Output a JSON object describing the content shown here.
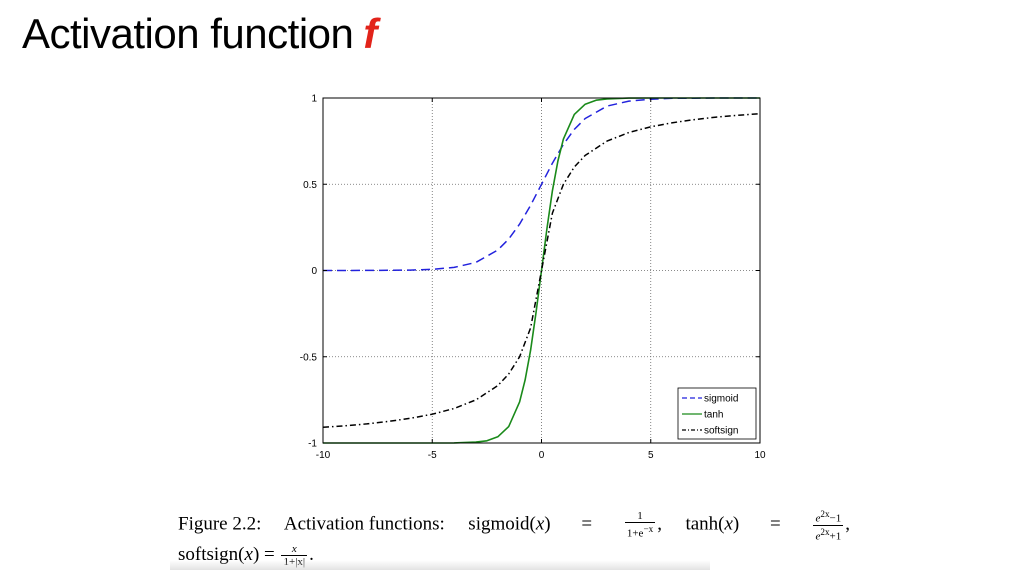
{
  "slide": {
    "title": "Activation function",
    "title_accent": "f",
    "accent_color": "#e2231a"
  },
  "chart_data": {
    "type": "line",
    "title": "",
    "xlabel": "",
    "ylabel": "",
    "xlim": [
      -10,
      10
    ],
    "ylim": [
      -1,
      1
    ],
    "grid": true,
    "legend_position": "bottom-right",
    "x_ticks": [
      "-10",
      "-5",
      "0",
      "5",
      "10"
    ],
    "x_tick_values": [
      -10,
      -5,
      0,
      5,
      10
    ],
    "y_ticks": [
      "-1",
      "-0.5",
      "0",
      "0.5",
      "1"
    ],
    "y_tick_values": [
      -1,
      -0.5,
      0,
      0.5,
      1
    ],
    "series": [
      {
        "name": "sigmoid",
        "style": "dashed",
        "color": "#2222dd",
        "x": [
          -10,
          -9,
          -8,
          -7,
          -6,
          -5,
          -4,
          -3,
          -2,
          -1.5,
          -1,
          -0.5,
          0,
          0.5,
          1,
          1.5,
          2,
          3,
          4,
          5,
          6,
          7,
          8,
          9,
          10
        ],
        "y": [
          0.0,
          0.0001,
          0.0003,
          0.0009,
          0.0025,
          0.0067,
          0.018,
          0.047,
          0.119,
          0.182,
          0.269,
          0.378,
          0.5,
          0.622,
          0.731,
          0.818,
          0.881,
          0.953,
          0.982,
          0.993,
          0.998,
          0.999,
          1.0,
          1.0,
          1.0
        ]
      },
      {
        "name": "tanh",
        "style": "solid",
        "color": "#1a8a1a",
        "x": [
          -10,
          -5,
          -4,
          -3,
          -2.5,
          -2,
          -1.5,
          -1,
          -0.75,
          -0.5,
          -0.25,
          0,
          0.25,
          0.5,
          0.75,
          1,
          1.5,
          2,
          2.5,
          3,
          4,
          5,
          10
        ],
        "y": [
          -1.0,
          -0.9999,
          -0.9993,
          -0.995,
          -0.987,
          -0.964,
          -0.905,
          -0.762,
          -0.635,
          -0.462,
          -0.245,
          0.0,
          0.245,
          0.462,
          0.635,
          0.762,
          0.905,
          0.964,
          0.987,
          0.995,
          0.9993,
          0.9999,
          1.0
        ]
      },
      {
        "name": "softsign",
        "style": "dash-dot",
        "color": "#000000",
        "x": [
          -10,
          -9,
          -8,
          -7,
          -6,
          -5,
          -4,
          -3,
          -2,
          -1.5,
          -1,
          -0.5,
          0,
          0.5,
          1,
          1.5,
          2,
          3,
          4,
          5,
          6,
          7,
          8,
          9,
          10
        ],
        "y": [
          -0.909,
          -0.9,
          -0.889,
          -0.875,
          -0.857,
          -0.833,
          -0.8,
          -0.75,
          -0.667,
          -0.6,
          -0.5,
          -0.333,
          0.0,
          0.333,
          0.5,
          0.6,
          0.667,
          0.75,
          0.8,
          0.833,
          0.857,
          0.875,
          0.889,
          0.9,
          0.909
        ]
      }
    ]
  },
  "caption": {
    "figure_label": "Figure 2.2:",
    "text": "Activation functions:",
    "sigmoid_lhs": "sigmoid(",
    "var": "x",
    "close": ")",
    "eq": "=",
    "sigmoid_num": "1",
    "sigmoid_den": "1+e",
    "sigmoid_den_exp": "−x",
    "comma": ",",
    "tanh_lhs": "tanh(",
    "tanh_num": "e",
    "tanh_num_exp": "2x",
    "tanh_num_tail": "−1",
    "tanh_den": "e",
    "tanh_den_exp": "2x",
    "tanh_den_tail": "+1",
    "softsign_lhs": "softsign(",
    "softsign_num": "x",
    "softsign_den": "1+|x|",
    "period": "."
  }
}
